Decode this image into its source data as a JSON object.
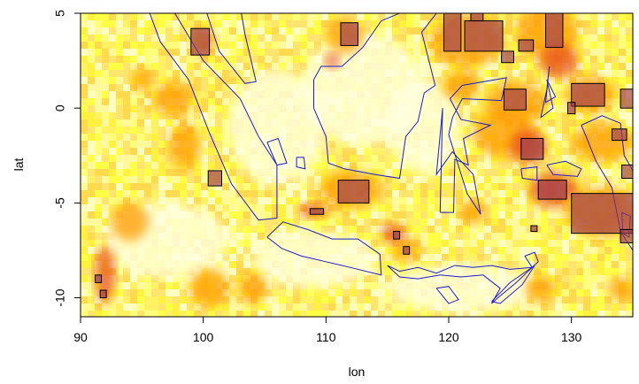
{
  "chart_data": {
    "type": "heatmap",
    "title": "",
    "xlabel": "lon",
    "ylabel": "lat",
    "xlim": [
      90,
      135
    ],
    "ylim": [
      -11,
      5
    ],
    "xticks": [
      90,
      100,
      110,
      120,
      130
    ],
    "yticks": [
      -10,
      -5,
      0,
      5
    ],
    "grid": false,
    "legend": "none",
    "colors": {
      "background_low": "#ffffe0",
      "yellow": "#ffff66",
      "orange": "#ff9900",
      "red": "#e64a1a",
      "detected_box_fill": "#7a8c6e",
      "coastline": "#1c1ccc"
    },
    "highlight_boxes": [
      {
        "lon": [
          99.0,
          100.5
        ],
        "lat": [
          2.8,
          4.2
        ]
      },
      {
        "lon": [
          100.4,
          101.5
        ],
        "lat": [
          -4.1,
          -3.3
        ]
      },
      {
        "lon": [
          111.2,
          112.6
        ],
        "lat": [
          3.3,
          4.5
        ]
      },
      {
        "lon": [
          119.6,
          121.0
        ],
        "lat": [
          3.0,
          5.0
        ]
      },
      {
        "lon": [
          121.3,
          124.4
        ],
        "lat": [
          3.0,
          4.6
        ]
      },
      {
        "lon": [
          124.3,
          125.3
        ],
        "lat": [
          2.4,
          3.0
        ]
      },
      {
        "lon": [
          125.7,
          126.9
        ],
        "lat": [
          3.0,
          3.6
        ]
      },
      {
        "lon": [
          127.9,
          129.3
        ],
        "lat": [
          3.2,
          5.0
        ]
      },
      {
        "lon": [
          124.5,
          126.3
        ],
        "lat": [
          -0.1,
          1.0
        ]
      },
      {
        "lon": [
          130.0,
          132.7
        ],
        "lat": [
          0.1,
          1.3
        ]
      },
      {
        "lon": [
          134.0,
          135.0
        ],
        "lat": [
          0.0,
          1.0
        ]
      },
      {
        "lon": [
          125.9,
          127.7
        ],
        "lat": [
          -2.7,
          -1.6
        ]
      },
      {
        "lon": [
          127.3,
          129.6
        ],
        "lat": [
          -4.8,
          -3.8
        ]
      },
      {
        "lon": [
          133.3,
          134.5
        ],
        "lat": [
          -1.7,
          -1.1
        ]
      },
      {
        "lon": [
          134.1,
          135.0
        ],
        "lat": [
          -3.7,
          -3.0
        ]
      },
      {
        "lon": [
          111.0,
          113.5
        ],
        "lat": [
          -5.0,
          -3.8
        ]
      },
      {
        "lon": [
          130.0,
          135.0
        ],
        "lat": [
          -6.6,
          -4.5
        ]
      },
      {
        "lon": [
          134.0,
          135.0
        ],
        "lat": [
          -7.1,
          -6.4
        ]
      },
      {
        "lon": [
          108.7,
          109.8
        ],
        "lat": [
          -5.6,
          -5.3
        ]
      },
      {
        "lon": [
          116.3,
          116.8
        ],
        "lat": [
          -7.7,
          -7.3
        ]
      },
      {
        "lon": [
          91.2,
          91.7
        ],
        "lat": [
          -9.2,
          -8.8
        ]
      },
      {
        "lon": [
          91.6,
          92.1
        ],
        "lat": [
          -10.0,
          -9.6
        ]
      },
      {
        "lon": [
          121.8,
          122.8
        ],
        "lat": [
          4.6,
          5.0
        ]
      },
      {
        "lon": [
          129.7,
          130.3
        ],
        "lat": [
          -0.3,
          0.3
        ]
      },
      {
        "lon": [
          126.7,
          127.2
        ],
        "lat": [
          -6.5,
          -6.2
        ]
      },
      {
        "lon": [
          115.5,
          116.0
        ],
        "lat": [
          -6.9,
          -6.5
        ]
      }
    ],
    "coastlines": [
      {
        "name": "Sumatra",
        "points": [
          [
            95.3,
            5.6
          ],
          [
            97.5,
            5.2
          ],
          [
            100.0,
            2.5
          ],
          [
            103.0,
            0.5
          ],
          [
            104.5,
            -1.5
          ],
          [
            106.0,
            -3.0
          ],
          [
            106.0,
            -5.8
          ],
          [
            104.5,
            -5.9
          ],
          [
            102.3,
            -4.0
          ],
          [
            100.5,
            -1.3
          ],
          [
            98.8,
            1.5
          ],
          [
            96.5,
            3.5
          ],
          [
            95.3,
            5.6
          ]
        ]
      },
      {
        "name": "Malay Peninsula",
        "points": [
          [
            100.3,
            5.0
          ],
          [
            101.3,
            3.0
          ],
          [
            103.4,
            1.3
          ],
          [
            104.3,
            1.4
          ],
          [
            103.4,
            3.9
          ],
          [
            103.1,
            5.0
          ]
        ]
      },
      {
        "name": "Borneo",
        "points": [
          [
            109.0,
            1.5
          ],
          [
            109.6,
            2.2
          ],
          [
            111.3,
            2.2
          ],
          [
            113.0,
            3.2
          ],
          [
            114.5,
            4.6
          ],
          [
            116.0,
            5.0
          ],
          [
            117.0,
            6.8
          ],
          [
            119.0,
            5.0
          ],
          [
            117.8,
            4.0
          ],
          [
            118.9,
            1.2
          ],
          [
            118.0,
            0.8
          ],
          [
            117.5,
            -0.7
          ],
          [
            116.5,
            -1.5
          ],
          [
            116.0,
            -3.7
          ],
          [
            114.0,
            -3.5
          ],
          [
            111.5,
            -3.2
          ],
          [
            110.2,
            -2.9
          ],
          [
            110.0,
            -1.5
          ],
          [
            109.0,
            0.0
          ],
          [
            109.0,
            1.5
          ]
        ]
      },
      {
        "name": "Java",
        "points": [
          [
            105.2,
            -6.8
          ],
          [
            106.5,
            -6.0
          ],
          [
            108.5,
            -6.4
          ],
          [
            110.5,
            -6.9
          ],
          [
            112.6,
            -6.9
          ],
          [
            114.4,
            -7.7
          ],
          [
            114.5,
            -8.8
          ],
          [
            112.0,
            -8.4
          ],
          [
            110.0,
            -8.1
          ],
          [
            108.0,
            -7.8
          ],
          [
            106.4,
            -7.4
          ],
          [
            105.2,
            -6.8
          ]
        ]
      },
      {
        "name": "Sulawesi",
        "points": [
          [
            119.3,
            -5.5
          ],
          [
            120.4,
            -5.5
          ],
          [
            120.5,
            -2.7
          ],
          [
            121.6,
            -3.0
          ],
          [
            121.2,
            -1.6
          ],
          [
            123.4,
            -0.9
          ],
          [
            121.0,
            -0.6
          ],
          [
            120.1,
            0.5
          ],
          [
            121.1,
            1.2
          ],
          [
            124.7,
            1.6
          ],
          [
            124.3,
            0.4
          ],
          [
            121.1,
            0.5
          ],
          [
            120.3,
            -0.5
          ],
          [
            120.0,
            -1.4
          ],
          [
            121.5,
            -4.5
          ],
          [
            122.6,
            -5.6
          ],
          [
            122.0,
            -3.5
          ],
          [
            120.3,
            -2.3
          ],
          [
            119.0,
            -3.5
          ],
          [
            119.5,
            0.0
          ],
          [
            119.3,
            -5.5
          ]
        ]
      },
      {
        "name": "Lesser Sundas",
        "points": [
          [
            115.0,
            -8.3
          ],
          [
            116.0,
            -8.6
          ],
          [
            117.5,
            -8.4
          ],
          [
            119.0,
            -8.7
          ],
          [
            120.5,
            -8.3
          ],
          [
            122.0,
            -8.4
          ],
          [
            123.5,
            -8.3
          ],
          [
            125.0,
            -8.5
          ],
          [
            126.8,
            -8.4
          ],
          [
            125.5,
            -9.2
          ],
          [
            124.0,
            -10.0
          ],
          [
            123.5,
            -10.3
          ],
          [
            124.2,
            -9.5
          ],
          [
            122.8,
            -8.8
          ],
          [
            121.0,
            -8.9
          ],
          [
            119.3,
            -8.8
          ],
          [
            117.5,
            -9.0
          ],
          [
            116.0,
            -8.9
          ],
          [
            115.0,
            -8.3
          ]
        ]
      },
      {
        "name": "Sumba",
        "points": [
          [
            119.0,
            -9.5
          ],
          [
            120.0,
            -9.4
          ],
          [
            120.8,
            -10.1
          ],
          [
            120.0,
            -10.3
          ],
          [
            119.0,
            -9.5
          ]
        ]
      },
      {
        "name": "Timor",
        "points": [
          [
            123.5,
            -10.2
          ],
          [
            125.0,
            -9.2
          ],
          [
            127.0,
            -8.3
          ],
          [
            126.0,
            -9.3
          ],
          [
            124.2,
            -10.3
          ],
          [
            123.5,
            -10.2
          ]
        ]
      },
      {
        "name": "Halmahera",
        "points": [
          [
            127.5,
            -0.5
          ],
          [
            128.0,
            1.0
          ],
          [
            128.2,
            2.2
          ],
          [
            127.9,
            0.3
          ],
          [
            128.7,
            0.6
          ],
          [
            128.0,
            1.5
          ],
          [
            128.5,
            0.0
          ],
          [
            127.5,
            -0.5
          ]
        ]
      },
      {
        "name": "New Guinea",
        "points": [
          [
            130.8,
            -0.9
          ],
          [
            132.5,
            -0.4
          ],
          [
            134.0,
            -0.8
          ],
          [
            134.3,
            -2.5
          ],
          [
            135.0,
            -3.3
          ],
          [
            135.0,
            -7.5
          ],
          [
            134.0,
            -6.5
          ],
          [
            133.3,
            -4.2
          ],
          [
            132.0,
            -2.8
          ],
          [
            131.2,
            -1.5
          ],
          [
            130.8,
            -0.9
          ]
        ]
      },
      {
        "name": "Seram",
        "points": [
          [
            128.0,
            -3.0
          ],
          [
            129.5,
            -2.8
          ],
          [
            130.8,
            -3.2
          ],
          [
            130.5,
            -3.6
          ],
          [
            128.5,
            -3.5
          ],
          [
            128.0,
            -3.0
          ]
        ]
      },
      {
        "name": "Bangka",
        "points": [
          [
            105.2,
            -1.8
          ],
          [
            106.1,
            -1.6
          ],
          [
            106.8,
            -2.9
          ],
          [
            106.0,
            -3.0
          ],
          [
            105.2,
            -1.8
          ]
        ]
      },
      {
        "name": "Belitung",
        "points": [
          [
            107.6,
            -2.6
          ],
          [
            108.2,
            -2.6
          ],
          [
            108.3,
            -3.2
          ],
          [
            107.6,
            -3.1
          ],
          [
            107.6,
            -2.6
          ]
        ]
      },
      {
        "name": "Mindanao",
        "points": [
          [
            121.8,
            5.0
          ],
          [
            122.5,
            5.0
          ],
          [
            123.5,
            5.0
          ],
          [
            124.2,
            5.0
          ],
          [
            125.2,
            5.0
          ],
          [
            125.6,
            5.0
          ],
          [
            126.5,
            5.0
          ]
        ]
      },
      {
        "name": "Buru",
        "points": [
          [
            125.9,
            -3.2
          ],
          [
            127.2,
            -3.1
          ],
          [
            127.2,
            -3.8
          ],
          [
            126.0,
            -3.7
          ],
          [
            125.9,
            -3.2
          ]
        ]
      },
      {
        "name": "Flores Tail",
        "points": [
          [
            126.8,
            -8.4
          ],
          [
            127.3,
            -8.1
          ],
          [
            127.0,
            -7.6
          ],
          [
            126.2,
            -7.8
          ],
          [
            126.8,
            -8.4
          ]
        ]
      },
      {
        "name": "Aru",
        "points": [
          [
            134.1,
            -5.5
          ],
          [
            134.8,
            -5.7
          ],
          [
            134.7,
            -6.8
          ],
          [
            134.2,
            -6.6
          ],
          [
            134.1,
            -5.5
          ]
        ]
      }
    ]
  }
}
